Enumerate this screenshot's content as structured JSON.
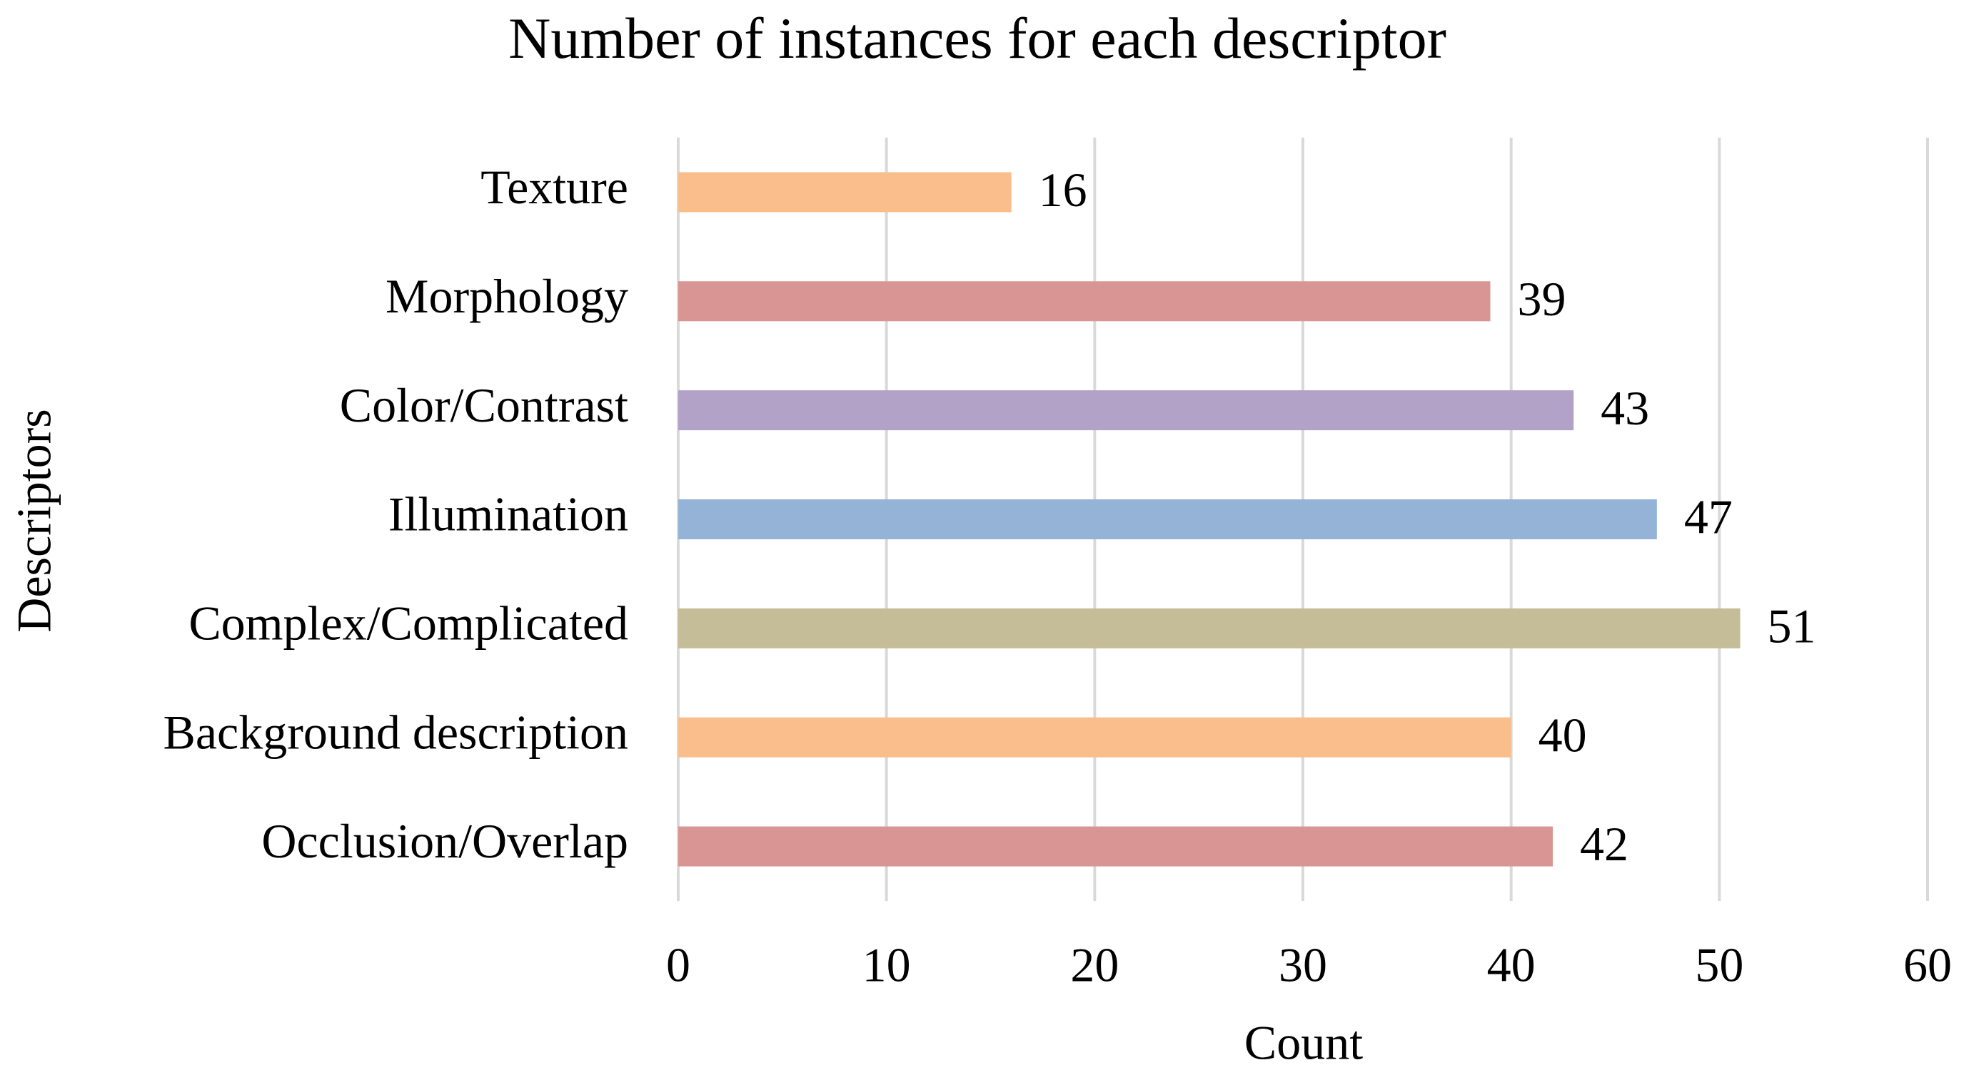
{
  "chart_data": {
    "type": "hbar",
    "title": "Number of instances for each descriptor",
    "x_label": "Count",
    "y_label": "Descriptors",
    "categories": [
      "Texture",
      "Morphology",
      "Color/Contrast",
      "Illumination",
      "Complex/Complicated",
      "Background description",
      "Occlusion/Overlap"
    ],
    "values": [
      16,
      39,
      43,
      47,
      51,
      40,
      42
    ],
    "colors": [
      "#f9be8c",
      "#d99594",
      "#b2a2c7",
      "#95b3d7",
      "#c4bd97",
      "#f9be8c",
      "#d99594"
    ],
    "xlim": [
      0,
      60
    ],
    "xticks": [
      0,
      10,
      20,
      30,
      40,
      50,
      60
    ],
    "grid": true
  }
}
